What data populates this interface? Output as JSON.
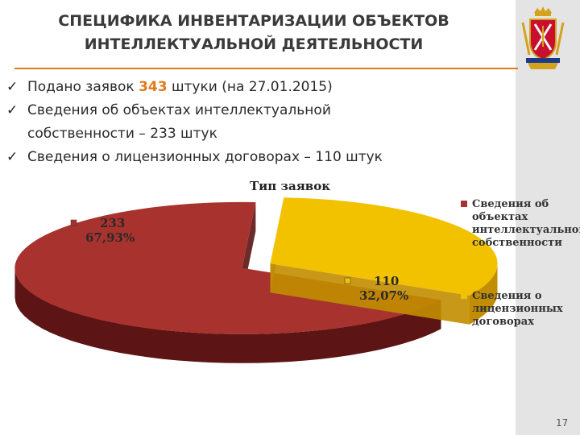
{
  "slide": {
    "title_line1": "СПЕЦИФИКА ИНВЕНТАРИЗАЦИИ ОБЪЕКТОВ",
    "title_line2": "ИНТЕЛЛЕКТУАЛЬНОЙ ДЕЯТЕЛЬНОСТИ",
    "check_glyph": "✓",
    "bullet1_pre": "Подано заявок ",
    "bullet1_num": "343",
    "bullet1_post": " штуки (на 27.01.2015)",
    "bullet2_line1": "Сведения об объектах интеллектуальной",
    "bullet2_line2": "собственности – 233 штук",
    "bullet3": "Сведения о лицензионных договорах – 110 штук",
    "page_number": "17",
    "emblem_icon": "coat-of-arms-icon",
    "colors": {
      "accent": "#e07b1a",
      "sidebar": "#e4e4e4"
    }
  },
  "chart_data": {
    "type": "pie",
    "title": "Тип заявок",
    "series": [
      {
        "name": "Тип заявок",
        "values": [
          233,
          110
        ],
        "percents": [
          "67,93%",
          "32,07%"
        ]
      }
    ],
    "categories": [
      "Сведения об объектах интеллектуальной собственности",
      "Сведения о лицензионных договорах"
    ],
    "legend_lines": [
      [
        "Сведения об",
        "объектах",
        "интеллектуальной",
        "собственности"
      ],
      [
        "Сведения о",
        "лицензионных",
        "договорах"
      ]
    ],
    "slice_colors": [
      "#a8322e",
      "#f2c200"
    ],
    "slice_side_colors": [
      "#5c1414",
      "#c28d00"
    ],
    "exploded": true,
    "style": "3d",
    "legend_position": "right"
  }
}
